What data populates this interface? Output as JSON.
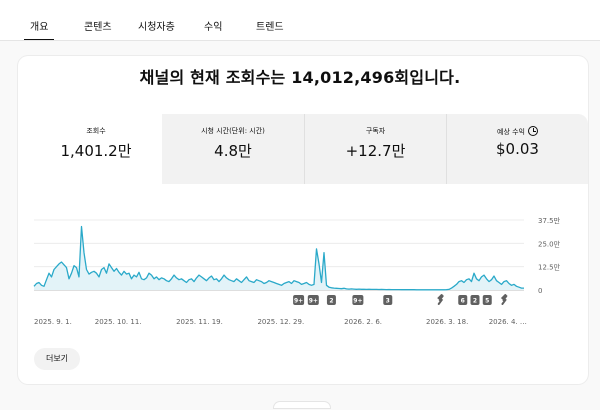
{
  "tabs": [
    {
      "label": "개요",
      "active": true
    },
    {
      "label": "콘텐츠"
    },
    {
      "label": "시청자층"
    },
    {
      "label": "수익"
    },
    {
      "label": "트렌드"
    }
  ],
  "headline": "채널의 현재 조회수는 14,012,496회입니다.",
  "metrics": [
    {
      "label": "조회수",
      "value": "1,401.2만",
      "selected": true
    },
    {
      "label": "시청 시간(단위: 시간)",
      "value": "4.8만"
    },
    {
      "label": "구독자",
      "value": "+12.7만"
    },
    {
      "label": "예상 수익",
      "value": "$0.03",
      "icon": "clock-icon"
    }
  ],
  "chart_data": {
    "type": "area",
    "y_ticks": [
      "37.5만",
      "25.0만",
      "12.5만",
      "0"
    ],
    "ylim": [
      0,
      375000
    ],
    "x_ticks": [
      "2025. 9. 1.",
      "2025. 10. 11.",
      "2025. 11. 19.",
      "2025. 12. 29.",
      "2026. 2. 6.",
      "2026. 3. 18.",
      "2026. 4. …"
    ],
    "series": [
      {
        "color": "#2aa9c9",
        "values": [
          20000,
          35000,
          40000,
          25000,
          20000,
          55000,
          90000,
          70000,
          110000,
          125000,
          140000,
          150000,
          135000,
          120000,
          60000,
          90000,
          130000,
          120000,
          70000,
          340000,
          200000,
          110000,
          85000,
          95000,
          100000,
          90000,
          70000,
          110000,
          120000,
          90000,
          140000,
          120000,
          100000,
          115000,
          95000,
          80000,
          100000,
          85000,
          90000,
          60000,
          80000,
          70000,
          95000,
          60000,
          55000,
          65000,
          90000,
          80000,
          60000,
          70000,
          55000,
          65000,
          60000,
          50000,
          45000,
          60000,
          80000,
          65000,
          55000,
          60000,
          50000,
          40000,
          55000,
          60000,
          45000,
          65000,
          80000,
          70000,
          60000,
          50000,
          65000,
          75000,
          55000,
          60000,
          45000,
          60000,
          80000,
          65000,
          55000,
          50000,
          45000,
          60000,
          50000,
          40000,
          55000,
          70000,
          50000,
          45000,
          40000,
          55000,
          50000,
          45000,
          35000,
          40000,
          50000,
          45000,
          40000,
          35000,
          30000,
          25000,
          35000,
          40000,
          45000,
          35000,
          50000,
          45000,
          40000,
          30000,
          35000,
          40000,
          30000,
          25000,
          30000,
          220000,
          140000,
          40000,
          200000,
          25000,
          15000,
          12000,
          10000,
          9000,
          8000,
          7000,
          9000,
          6000,
          5000,
          6000,
          5000,
          4000,
          5000,
          4000,
          4000,
          3000,
          4000,
          3000,
          3000,
          3000,
          2500,
          3000,
          2500,
          2000,
          2500,
          2000,
          2000,
          2000,
          2000,
          1500,
          2000,
          1500,
          1500,
          1500,
          1500,
          1200,
          1200,
          1200,
          1000,
          1000,
          1000,
          1000,
          1000,
          1000,
          1000,
          1000,
          1200,
          1500,
          3000,
          10000,
          20000,
          30000,
          45000,
          50000,
          40000,
          55000,
          60000,
          45000,
          90000,
          60000,
          50000,
          70000,
          80000,
          60000,
          45000,
          55000,
          75000,
          50000,
          40000,
          30000,
          45000,
          50000,
          35000,
          25000,
          30000,
          20000,
          15000,
          10000,
          10000
        ]
      }
    ],
    "markers": [
      "9+",
      "9+",
      "2",
      "9+",
      "3",
      "shorts",
      "6",
      "2",
      "5",
      "shorts"
    ]
  },
  "more_button": "더보기",
  "colors": {
    "accent": "#2aa9c9",
    "fill": "#e3f3f8",
    "marker": "#606060"
  }
}
